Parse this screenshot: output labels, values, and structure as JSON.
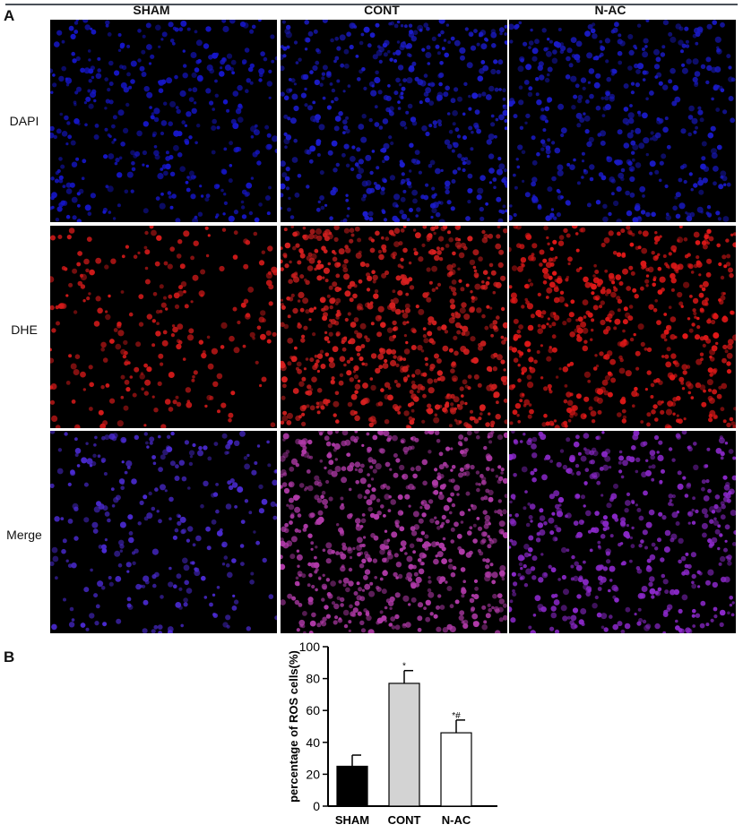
{
  "panel_a": {
    "letter": "A",
    "columns": [
      "SHAM",
      "CONT",
      "N-AC"
    ],
    "rows": [
      "DAPI",
      "DHE",
      "Merge"
    ],
    "tile_colors": {
      "DAPI": [
        "#1616c8",
        "#1c1ccc",
        "#1a1ac6"
      ],
      "DHE": [
        "#d41a1a",
        "#d82020",
        "#e01818"
      ],
      "Merge": [
        "#4a2ad0",
        "#b03aa8",
        "#8a28c8"
      ]
    },
    "cell_density": {
      "DAPI": [
        0.55,
        0.7,
        0.6
      ],
      "DHE": [
        0.35,
        0.95,
        0.8
      ],
      "Merge": [
        0.4,
        0.95,
        0.7
      ]
    }
  },
  "panel_b": {
    "letter": "B"
  },
  "chart_data": {
    "type": "bar",
    "categories": [
      "SHAM",
      "CONT",
      "N-AC"
    ],
    "values": [
      25,
      77,
      46
    ],
    "errors": [
      7,
      8,
      8
    ],
    "annotations": [
      "",
      "*",
      "*#"
    ],
    "bar_colors": [
      "#000000",
      "#d3d3d3",
      "#ffffff"
    ],
    "ylabel": "percentage of ROS cells(%)",
    "ylim": [
      0,
      100
    ],
    "yticks": [
      0,
      20,
      40,
      60,
      80,
      100
    ],
    "grid": false
  }
}
